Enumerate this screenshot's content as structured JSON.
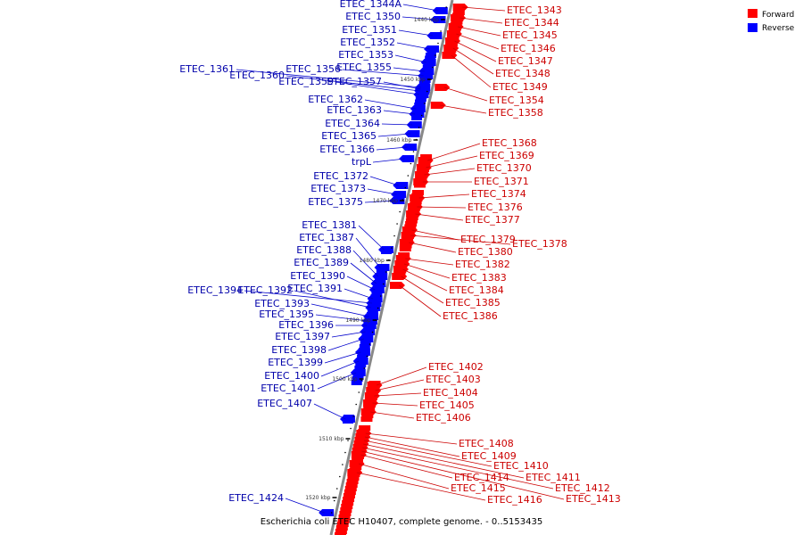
{
  "caption": "Escherichia coli ETEC H10407, complete genome. - 0..5153435",
  "legend": {
    "forward": {
      "label": "Forward",
      "color": "#ff0000"
    },
    "reverse": {
      "label": "Reverse",
      "color": "#0000ff"
    }
  },
  "colors": {
    "backbone": "#888888",
    "forward_text": "#cc0000",
    "reverse_text": "#0000aa"
  },
  "ticks": [
    "1440 kbp",
    "1450 kbp",
    "1460 kbp",
    "1470 kbp",
    "1480 kbp",
    "1490 kbp",
    "1500 kbp",
    "1510 kbp",
    "1520 kbp"
  ],
  "reverse_genes": [
    "ETEC_1344A",
    "ETEC_1350",
    "ETEC_1351",
    "ETEC_1352",
    "ETEC_1353",
    "ETEC_1355",
    "ETEC_1356",
    "ETEC_1361",
    "ETEC_1360",
    "ETEC_1359",
    "ETEC_1357",
    "ETEC_1362",
    "ETEC_1363",
    "ETEC_1364",
    "ETEC_1365",
    "ETEC_1366",
    "trpL",
    "ETEC_1372",
    "ETEC_1373",
    "ETEC_1375",
    "ETEC_1381",
    "ETEC_1387",
    "ETEC_1388",
    "ETEC_1389",
    "ETEC_1390",
    "ETEC_1394",
    "ETEC_1392",
    "ETEC_1391",
    "ETEC_1393",
    "ETEC_1395",
    "ETEC_1396",
    "ETEC_1397",
    "ETEC_1398",
    "ETEC_1399",
    "ETEC_1400",
    "ETEC_1401",
    "ETEC_1407",
    "ETEC_1424"
  ],
  "forward_genes": [
    "ETEC_1343",
    "ETEC_1344",
    "ETEC_1345",
    "ETEC_1346",
    "ETEC_1347",
    "ETEC_1348",
    "ETEC_1349",
    "ETEC_1354",
    "ETEC_1358",
    "ETEC_1368",
    "ETEC_1369",
    "ETEC_1370",
    "ETEC_1371",
    "ETEC_1374",
    "ETEC_1376",
    "ETEC_1377",
    "ETEC_1379",
    "ETEC_1378",
    "ETEC_1380",
    "ETEC_1382",
    "ETEC_1383",
    "ETEC_1384",
    "ETEC_1385",
    "ETEC_1386",
    "ETEC_1402",
    "ETEC_1403",
    "ETEC_1404",
    "ETEC_1405",
    "ETEC_1406",
    "ETEC_1408",
    "ETEC_1409",
    "ETEC_1410",
    "ETEC_1411",
    "ETEC_1412",
    "ETEC_1413",
    "ETEC_1414",
    "ETEC_1415",
    "ETEC_1416"
  ]
}
